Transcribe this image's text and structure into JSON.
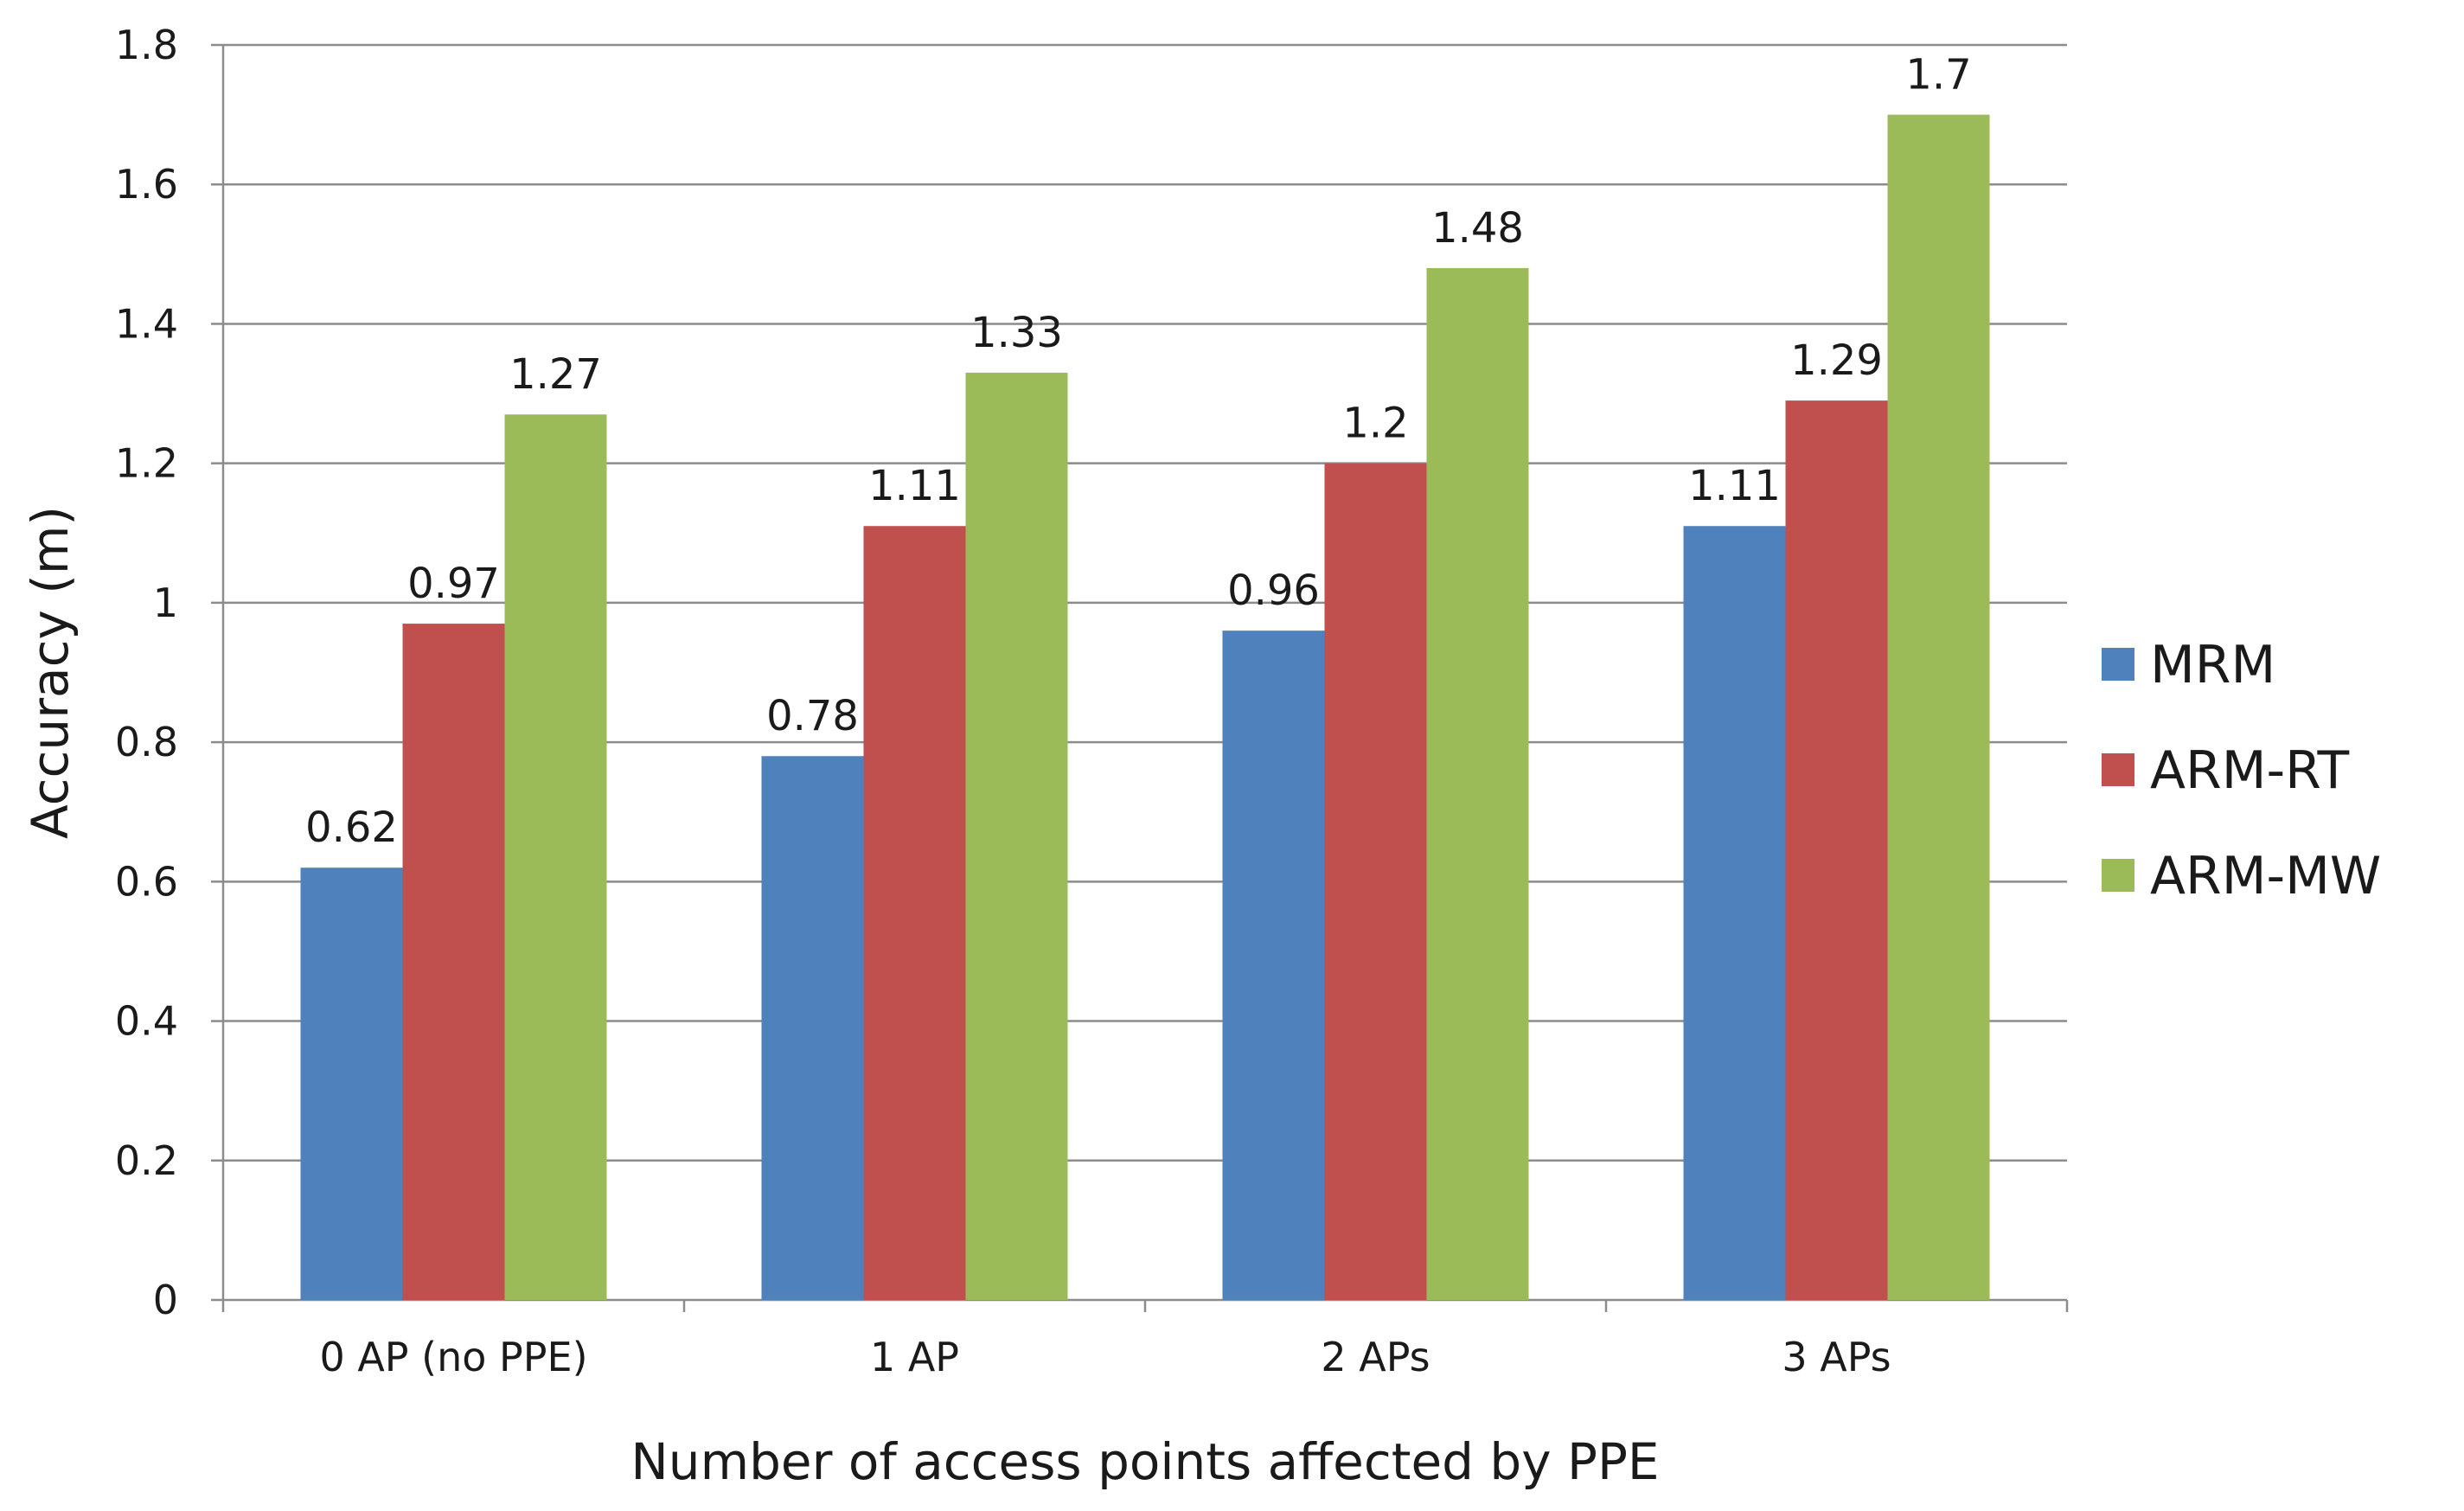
{
  "chart_data": {
    "type": "bar",
    "title": "",
    "xlabel": "Number of access points affected by PPE",
    "ylabel": "Accuracy (m)",
    "ylim": [
      0,
      1.8
    ],
    "ytick_step": 0.2,
    "yticks": [
      "0",
      "0.2",
      "0.4",
      "0.6",
      "0.8",
      "1",
      "1.2",
      "1.4",
      "1.6",
      "1.8"
    ],
    "grid": true,
    "legend_position": "right",
    "categories": [
      "0 AP (no PPE)",
      "1 AP",
      "2 APs",
      "3 APs"
    ],
    "series": [
      {
        "name": "MRM",
        "color": "#4F81BD",
        "values": [
          0.62,
          0.78,
          0.96,
          1.11
        ],
        "labels": [
          "0.62",
          "0.78",
          "0.96",
          "1.11"
        ]
      },
      {
        "name": "ARM-RT",
        "color": "#C0504D",
        "values": [
          0.97,
          1.11,
          1.2,
          1.29
        ],
        "labels": [
          "0.97",
          "1.11",
          "1.2",
          "1.29"
        ]
      },
      {
        "name": "ARM-MW",
        "color": "#9BBB59",
        "values": [
          1.27,
          1.33,
          1.48,
          1.7
        ],
        "labels": [
          "1.27",
          "1.33",
          "1.48",
          "1.7"
        ]
      }
    ]
  }
}
